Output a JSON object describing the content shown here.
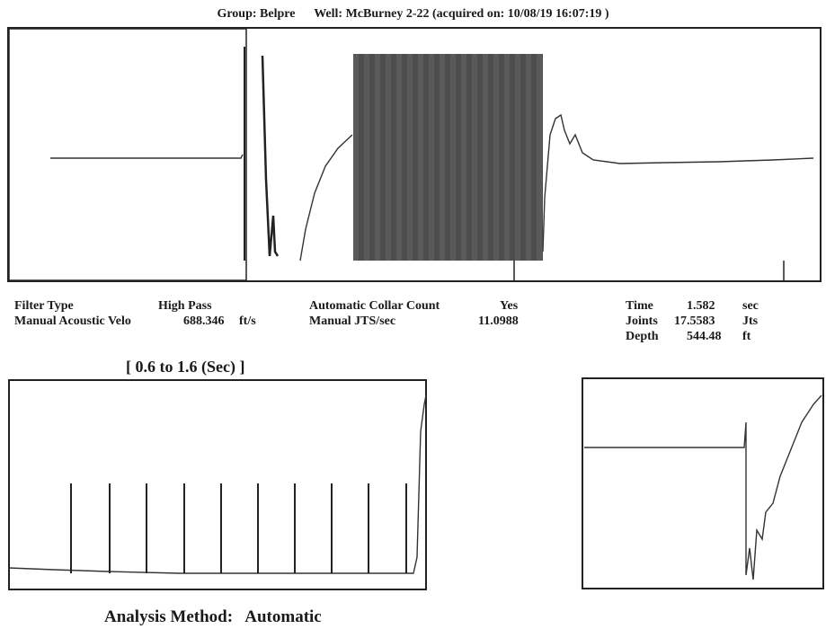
{
  "header": {
    "group_label": "Group: Belpre",
    "well_label": "Well: McBurney 2-22 (acquired on: 10/08/19 16:07:19 )"
  },
  "params": {
    "filter_type_label": "Filter Type",
    "filter_type_value": "High Pass",
    "velocity_label": "Manual Acoustic Velo",
    "velocity_value": "688.346",
    "velocity_unit": "ft/s",
    "collar_count_label": "Automatic Collar Count",
    "collar_count_value": "Yes",
    "jts_label": "Manual JTS/sec",
    "jts_value": "11.0988"
  },
  "results": {
    "time_label": "Time",
    "time_value": "1.582",
    "time_unit": "sec",
    "joints_label": "Joints",
    "joints_value": "17.5583",
    "joints_unit": "Jts",
    "depth_label": "Depth",
    "depth_value": "544.48",
    "depth_unit": "ft"
  },
  "collar_window": {
    "range_label": "[ 0.6  to  1.6 (Sec) ]"
  },
  "footer": {
    "analysis_label": "Analysis Method:",
    "analysis_value": "Automatic"
  },
  "colors": {
    "trace": "#333333",
    "frame": "#222222",
    "overlay": "#555555"
  }
}
